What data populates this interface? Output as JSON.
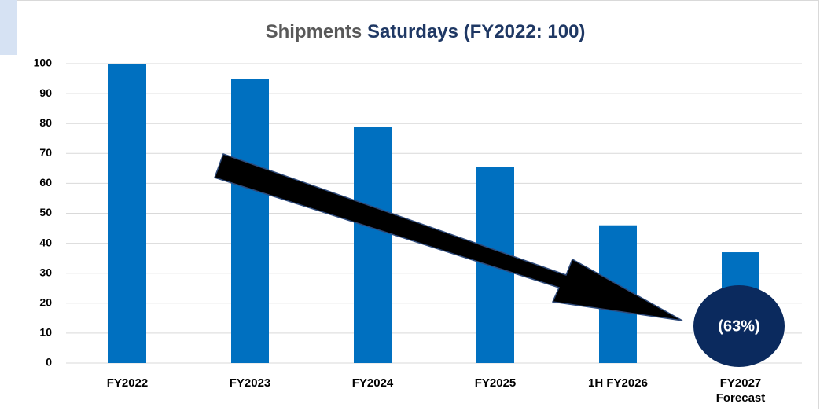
{
  "chart_data": {
    "type": "bar",
    "title_parts": [
      "Shipments",
      "Saturdays (FY2022: 100)"
    ],
    "title_colors": [
      "#595959",
      "#1f3864"
    ],
    "categories": [
      "FY2022",
      "FY2023",
      "FY2024",
      "FY2025",
      "1H FY2026",
      "FY2027 Forecast"
    ],
    "values": [
      100,
      95,
      79,
      65.5,
      46,
      37
    ],
    "color": "#0070c0",
    "ylim": [
      0,
      100
    ],
    "yticks": [
      0,
      10,
      20,
      30,
      40,
      50,
      60,
      70,
      80,
      90,
      100
    ],
    "grid": true,
    "annotation": "(63%)"
  }
}
